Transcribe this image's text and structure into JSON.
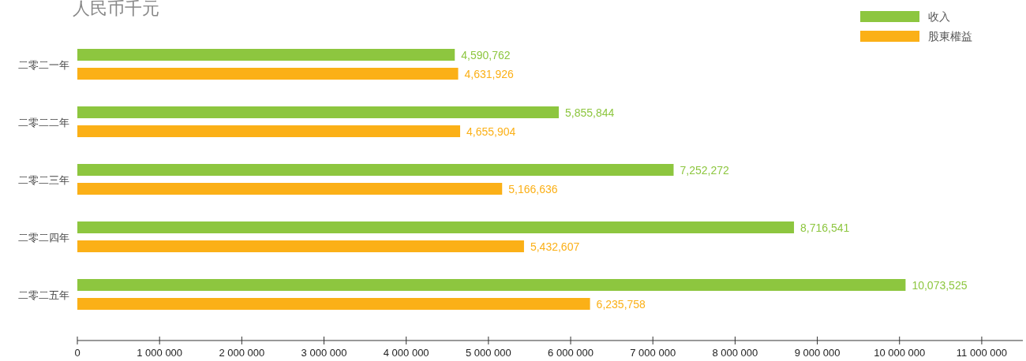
{
  "chart_data": {
    "type": "bar",
    "orientation": "horizontal",
    "title": "人民币千元",
    "categories": [
      "二零二一年",
      "二零二二年",
      "二零二三年",
      "二零二四年",
      "二零二五年"
    ],
    "series": [
      {
        "name": "收入",
        "color": "#8dc63f",
        "values": [
          4590762,
          5855844,
          7252272,
          8716541,
          10073525
        ]
      },
      {
        "name": "股東權益",
        "color": "#fbb017",
        "values": [
          4631926,
          4655904,
          5166636,
          5432607,
          6235758
        ]
      }
    ],
    "xlim": [
      0,
      11500000
    ],
    "xticks": [
      0,
      {
        "value": 1000000,
        "label": "1 000 000"
      },
      {
        "value": 2000000,
        "label": "2 000 000"
      },
      {
        "value": 3000000,
        "label": "3 000 000"
      },
      {
        "value": 4000000,
        "label": "4 000 000"
      },
      {
        "value": 5000000,
        "label": "5 000 000"
      },
      {
        "value": 6000000,
        "label": "6 000 000"
      },
      {
        "value": 7000000,
        "label": "7 000 000"
      },
      {
        "value": 8000000,
        "label": "8 000 000"
      },
      {
        "value": 9000000,
        "label": "9 000 000"
      },
      {
        "value": 10000000,
        "label": "10 000 000"
      },
      {
        "value": 11000000,
        "label": "11 000 000"
      }
    ],
    "value_labels": [
      [
        "4,590,762",
        "5,855,844",
        "7,252,272",
        "8,716,541",
        "10,073,525"
      ],
      [
        "4,631,926",
        "4,655,904",
        "5,166,636",
        "5,432,607",
        "6,235,758"
      ]
    ],
    "grid": false,
    "legend": "top right"
  }
}
